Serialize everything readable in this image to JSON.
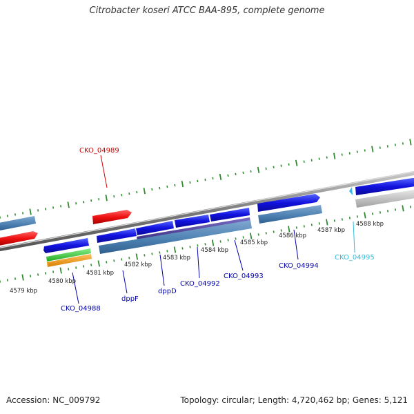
{
  "title": "Citrobacter koseri ATCC BAA-895, complete genome",
  "footer": {
    "accession": "Accession: NC_009792",
    "info": "Topology: circular; Length: 4,720,462 bp; Genes: 5,121"
  },
  "colors": {
    "cds_forward": "#1111dd",
    "cds_reverse": "#1111dd",
    "gene_blue": "#4b7fb0",
    "red_feature": "#ee1111",
    "green_feature": "#33cc33",
    "orange_feature": "#f39c12",
    "purple_feature": "#4b3d9a",
    "gray_feature": "#b8b8b8",
    "tick": "#2e8b2e",
    "label_blue": "#0000aa",
    "label_red": "#cc0000",
    "label_cyan": "#33bbdd"
  },
  "kbp_labels": [
    "4579 kbp",
    "4580 kbp",
    "4581 kbp",
    "4582 kbp",
    "4583 kbp",
    "4584 kbp",
    "4585 kbp",
    "4586 kbp",
    "4587 kbp",
    "4588 kbp"
  ],
  "gene_labels": {
    "cko_04989": "CKO_04989",
    "cko_04988": "CKO_04988",
    "dppf": "dppF",
    "dppd": "dppD",
    "cko_04992": "CKO_04992",
    "cko_04993": "CKO_04993",
    "cko_04994": "CKO_04994",
    "cko_04995": "CKO_04995"
  }
}
